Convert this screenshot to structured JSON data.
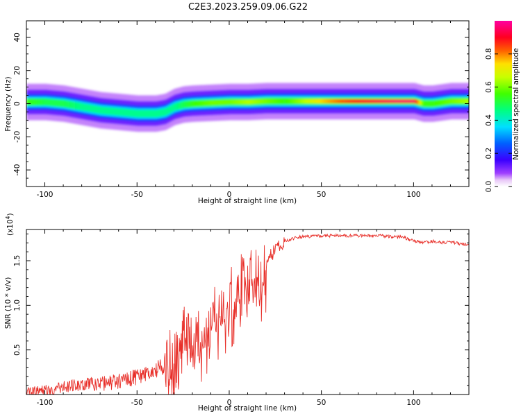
{
  "figure_title": "C2E3.2023.259.09.06.G22",
  "chart_data": [
    {
      "type": "heatmap",
      "xlabel": "Height of straight line (km)",
      "ylabel": "Frequency (Hz)",
      "xlim": [
        -110,
        130
      ],
      "ylim": [
        -50,
        50
      ],
      "x_ticks": [
        -100,
        -50,
        0,
        50,
        100
      ],
      "y_ticks": [
        -40,
        -20,
        0,
        20,
        40
      ],
      "colorbar": {
        "label": "Normalized spectral amplitude",
        "range": [
          0,
          1
        ],
        "ticks": [
          "0.0",
          "0.2",
          "0.4",
          "0.6",
          "0.8"
        ],
        "tick_values": [
          0.0,
          0.2,
          0.4,
          0.6,
          0.8
        ],
        "colormap": "rainbow (violet → blue → cyan → green → yellow → red → magenta)"
      },
      "ridge": {
        "x": [
          -110,
          -100,
          -90,
          -80,
          -70,
          -60,
          -50,
          -40,
          -35,
          -30,
          -25,
          -20,
          -10,
          0,
          10,
          20,
          30,
          50,
          70,
          90,
          100,
          105,
          110,
          120,
          130
        ],
        "frequency": [
          1,
          1,
          0,
          -2,
          -4,
          -5,
          -6,
          -6,
          -5,
          -2,
          -0.5,
          0,
          0.5,
          1,
          1,
          1.5,
          1.5,
          1.5,
          1.5,
          1.5,
          1.5,
          0,
          0,
          1.5,
          1.5
        ],
        "amplitude": [
          0.55,
          0.5,
          0.5,
          0.45,
          0.45,
          0.45,
          0.45,
          0.45,
          0.45,
          0.45,
          0.5,
          0.55,
          0.6,
          0.6,
          0.65,
          0.6,
          0.55,
          0.75,
          0.9,
          0.95,
          0.95,
          0.55,
          0.55,
          0.6,
          0.65
        ]
      }
    },
    {
      "type": "line",
      "xlabel": "Height of straight line (km)",
      "ylabel": "SNR (10 * v/v)",
      "scale_note": "(x10",
      "scale_exp": "4",
      "scale_close": ")",
      "xlim": [
        -110,
        130
      ],
      "ylim": [
        0,
        1.85
      ],
      "x_ticks": [
        -100,
        -50,
        0,
        50,
        100
      ],
      "y_ticks": [
        "0.5",
        "1.0",
        "1.5"
      ],
      "y_tick_values": [
        0.5,
        1.0,
        1.5
      ],
      "series": [
        {
          "color": "#e8302a",
          "x": [
            -110,
            -105,
            -100,
            -95,
            -90,
            -85,
            -80,
            -75,
            -70,
            -65,
            -60,
            -55,
            -50,
            -45,
            -40,
            -35,
            -32,
            -30,
            -28,
            -26,
            -25,
            -24,
            -22,
            -20,
            -18,
            -15,
            -12,
            -10,
            -8,
            -5,
            -2,
            0,
            3,
            5,
            8,
            10,
            12,
            15,
            18,
            20,
            22,
            25,
            28,
            30,
            35,
            40,
            50,
            60,
            70,
            80,
            90,
            95,
            100,
            105,
            110,
            115,
            120,
            125,
            130
          ],
          "values": [
            0.02,
            0.03,
            0.04,
            0.06,
            0.08,
            0.1,
            0.11,
            0.12,
            0.12,
            0.13,
            0.15,
            0.17,
            0.2,
            0.23,
            0.27,
            0.33,
            0.42,
            0.45,
            0.55,
            0.72,
            0.8,
            0.7,
            0.62,
            0.58,
            0.6,
            0.65,
            0.75,
            0.82,
            0.9,
            0.95,
            1.02,
            1.08,
            1.1,
            1.2,
            1.25,
            1.3,
            1.32,
            1.3,
            1.38,
            1.45,
            1.55,
            1.62,
            1.68,
            1.72,
            1.75,
            1.77,
            1.78,
            1.78,
            1.78,
            1.78,
            1.77,
            1.76,
            1.72,
            1.7,
            1.72,
            1.7,
            1.71,
            1.69,
            1.68
          ]
        }
      ]
    }
  ]
}
